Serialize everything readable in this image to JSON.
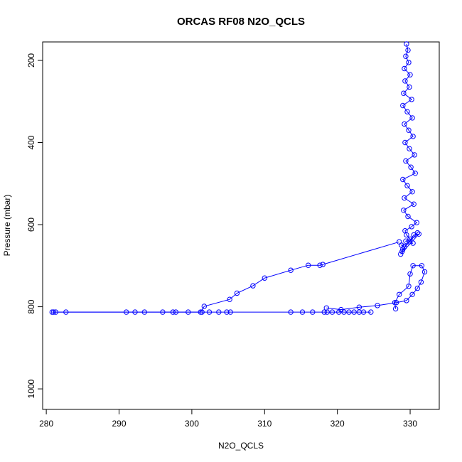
{
  "chart_data": {
    "type": "line",
    "title": "ORCAS RF08 N2O_QCLS",
    "xlabel": "N2O_QCLS",
    "ylabel": "Pressure (mbar)",
    "xlim": [
      279.5,
      334
    ],
    "ylim": [
      1050,
      155
    ],
    "y_reversed": true,
    "x_ticks": [
      280,
      290,
      300,
      310,
      320,
      330
    ],
    "y_ticks": [
      200,
      400,
      600,
      800,
      1000
    ],
    "marker": "open-circle",
    "line_style": "solid",
    "color": "#0000ff",
    "series": [
      {
        "x": [
          329.5,
          329.7,
          329.4,
          329.8,
          329.2,
          330.0,
          329.3,
          329.9,
          329.1,
          330.2,
          329.0,
          329.6,
          330.3,
          329.2,
          329.8,
          330.4,
          329.3,
          329.9,
          330.6,
          329.4,
          330.1,
          330.7,
          329.0,
          329.6,
          330.3,
          329.2,
          330.5,
          329.1,
          329.7,
          330.9,
          330.2,
          329.3,
          329.5,
          330.0,
          329.4,
          330.4,
          328.8,
          329.2,
          331.0,
          329.0,
          328.9,
          330.5,
          331.2,
          328.7
        ],
        "y": [
          160,
          175,
          190,
          205,
          220,
          235,
          250,
          265,
          280,
          295,
          310,
          325,
          340,
          355,
          370,
          385,
          400,
          415,
          430,
          445,
          460,
          475,
          490,
          505,
          520,
          535,
          550,
          565,
          580,
          595,
          605,
          615,
          625,
          635,
          640,
          645,
          650,
          655,
          620,
          660,
          665,
          625,
          623,
          672
        ]
      },
      {
        "x": [
          328.5,
          318.0,
          317.6,
          316.0,
          313.6,
          310.0,
          308.4,
          306.2,
          305.2,
          301.7,
          301.2,
          297.4,
          282.7,
          281.0
        ],
        "y": [
          642,
          697,
          699,
          699,
          711,
          730,
          749,
          767,
          782,
          799,
          813,
          813,
          813,
          813
        ]
      },
      {
        "x": [
          280.8,
          281.3,
          291.0,
          292.2,
          293.5,
          296.0,
          297.8,
          299.5,
          301.4,
          302.4,
          303.7,
          304.8,
          305.3,
          313.6,
          315.2,
          316.6,
          318.2,
          318.6,
          319.3,
          320.2,
          320.9,
          321.6,
          322.3,
          323.0,
          323.6,
          324.6
        ],
        "y": [
          813,
          813,
          813,
          813,
          813,
          813,
          813,
          813,
          813,
          813,
          813,
          813,
          813,
          813,
          813,
          813,
          813,
          813,
          813,
          813,
          813,
          813,
          813,
          813,
          813,
          813
        ]
      },
      {
        "x": [
          318.5,
          320.5,
          323.0,
          325.5,
          328.1,
          329.5,
          330.3,
          331.0,
          331.5,
          332.0,
          331.6,
          330.4,
          330.0,
          329.8,
          328.5,
          327.9,
          328.0
        ],
        "y": [
          803,
          807,
          801,
          797,
          790,
          785,
          770,
          755,
          740,
          715,
          700,
          700,
          720,
          750,
          770,
          790,
          805
        ]
      }
    ]
  }
}
